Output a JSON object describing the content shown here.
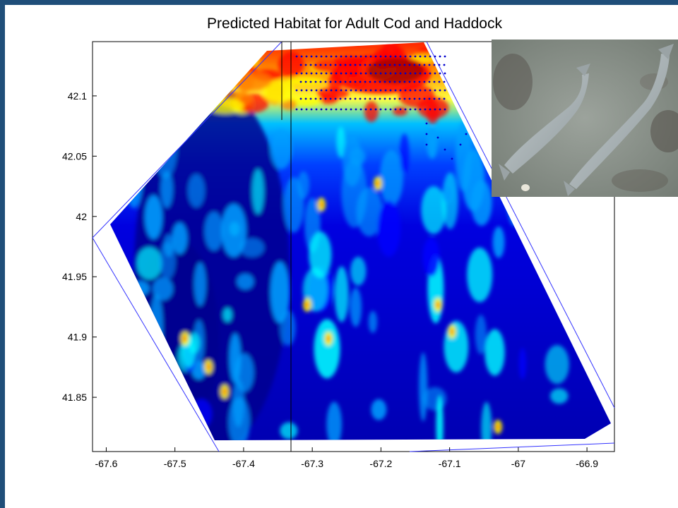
{
  "title": "Predicted Habitat for Adult Cod and Haddock",
  "map": {
    "x_ticks": [
      "-67.6",
      "-67.5",
      "-67.4",
      "-67.3",
      "-67.2",
      "-67.1",
      "-67",
      "-66.9"
    ],
    "y_ticks": [
      "42.1",
      "42.05",
      "42",
      "41.95",
      "41.9",
      "41.85"
    ],
    "xlim": [
      -67.62,
      -66.86
    ],
    "ylim": [
      41.805,
      42.145
    ],
    "colormap": [
      "#00008f",
      "#0000ff",
      "#00a0ff",
      "#00ffff",
      "#80ff80",
      "#ffff00",
      "#ff8000",
      "#ff0000",
      "#800000"
    ],
    "sample_point_color": "#0000cc",
    "boundary_color": "#3333ff"
  },
  "photo": {
    "icon": "fish-photo-icon",
    "sand_color": "#8a9089",
    "fish_color": "#aab3b6"
  },
  "colors": {
    "frame": "#1f4e79"
  }
}
